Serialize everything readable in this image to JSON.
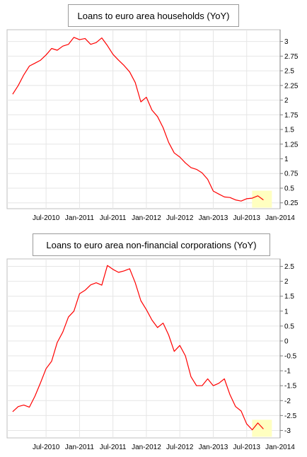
{
  "chart_data": [
    {
      "type": "line",
      "title": "Loans to euro area households (YoY)",
      "x_tick_labels": [
        "Jul-2010",
        "Jan-2011",
        "Jul-2011",
        "Jan-2012",
        "Jul-2012",
        "Jan-2013",
        "Jul-2013",
        "Jan-2014"
      ],
      "y_tick_labels": [
        "3",
        "2.75",
        "2.5",
        "2.25",
        "2",
        "1.75",
        "1.5",
        "1.25",
        "1",
        "0.75",
        "0.5",
        "0.25"
      ],
      "ylim": [
        0.15,
        3.2
      ],
      "grid": true,
      "line_color": "#ff0000",
      "highlight_color": "#ffffc0",
      "series": [
        {
          "x": [
            "2010-01",
            "2010-02",
            "2010-03",
            "2010-04",
            "2010-05",
            "2010-06",
            "2010-07",
            "2010-08",
            "2010-09",
            "2010-10",
            "2010-11",
            "2010-12",
            "2011-01",
            "2011-02",
            "2011-03",
            "2011-04",
            "2011-05",
            "2011-06",
            "2011-07",
            "2011-08",
            "2011-09",
            "2011-10",
            "2011-11",
            "2011-12",
            "2012-01",
            "2012-02",
            "2012-03",
            "2012-04",
            "2012-05",
            "2012-06",
            "2012-07",
            "2012-08",
            "2012-09",
            "2012-10",
            "2012-11",
            "2012-12",
            "2013-01",
            "2013-02",
            "2013-03",
            "2013-04",
            "2013-05",
            "2013-06",
            "2013-07",
            "2013-08",
            "2013-09",
            "2013-10"
          ],
          "y": [
            2.1,
            2.25,
            2.43,
            2.58,
            2.63,
            2.68,
            2.77,
            2.88,
            2.85,
            2.92,
            2.95,
            3.07,
            3.03,
            3.05,
            2.95,
            2.98,
            3.06,
            2.93,
            2.78,
            2.68,
            2.59,
            2.48,
            2.3,
            1.97,
            2.05,
            1.83,
            1.72,
            1.53,
            1.28,
            1.1,
            1.03,
            0.93,
            0.85,
            0.82,
            0.76,
            0.65,
            0.45,
            0.4,
            0.35,
            0.34,
            0.3,
            0.28,
            0.32,
            0.33,
            0.37,
            0.3
          ]
        }
      ]
    },
    {
      "type": "line",
      "title": "Loans to euro area non-financial corporations (YoY)",
      "x_tick_labels": [
        "Jul-2010",
        "Jan-2011",
        "Jul-2011",
        "Jan-2012",
        "Jul-2012",
        "Jan-2013",
        "Jul-2013",
        "Jan-2014"
      ],
      "y_tick_labels": [
        "2.5",
        "2",
        "1.5",
        "1",
        "0.5",
        "0",
        "-0.5",
        "-1",
        "-1.5",
        "-2",
        "-2.5",
        "-3"
      ],
      "ylim": [
        -3.25,
        2.75
      ],
      "grid": true,
      "line_color": "#ff0000",
      "highlight_color": "#ffffc0",
      "series": [
        {
          "x": [
            "2010-01",
            "2010-02",
            "2010-03",
            "2010-04",
            "2010-05",
            "2010-06",
            "2010-07",
            "2010-08",
            "2010-09",
            "2010-10",
            "2010-11",
            "2010-12",
            "2011-01",
            "2011-02",
            "2011-03",
            "2011-04",
            "2011-05",
            "2011-06",
            "2011-07",
            "2011-08",
            "2011-09",
            "2011-10",
            "2011-11",
            "2011-12",
            "2012-01",
            "2012-02",
            "2012-03",
            "2012-04",
            "2012-05",
            "2012-06",
            "2012-07",
            "2012-08",
            "2012-09",
            "2012-10",
            "2012-11",
            "2012-12",
            "2013-01",
            "2013-02",
            "2013-03",
            "2013-04",
            "2013-05",
            "2013-06",
            "2013-07",
            "2013-08",
            "2013-09",
            "2013-10"
          ],
          "y": [
            -2.37,
            -2.2,
            -2.15,
            -2.22,
            -1.85,
            -1.4,
            -0.93,
            -0.68,
            -0.05,
            0.3,
            0.8,
            1.0,
            1.58,
            1.7,
            1.88,
            1.95,
            1.87,
            2.53,
            2.4,
            2.3,
            2.35,
            2.42,
            1.95,
            1.35,
            1.05,
            0.7,
            0.45,
            0.6,
            0.2,
            -0.35,
            -0.15,
            -0.5,
            -1.2,
            -1.5,
            -1.5,
            -1.27,
            -1.5,
            -1.42,
            -1.27,
            -1.8,
            -2.2,
            -2.35,
            -2.78,
            -2.98,
            -2.75,
            -2.95
          ]
        }
      ]
    }
  ]
}
